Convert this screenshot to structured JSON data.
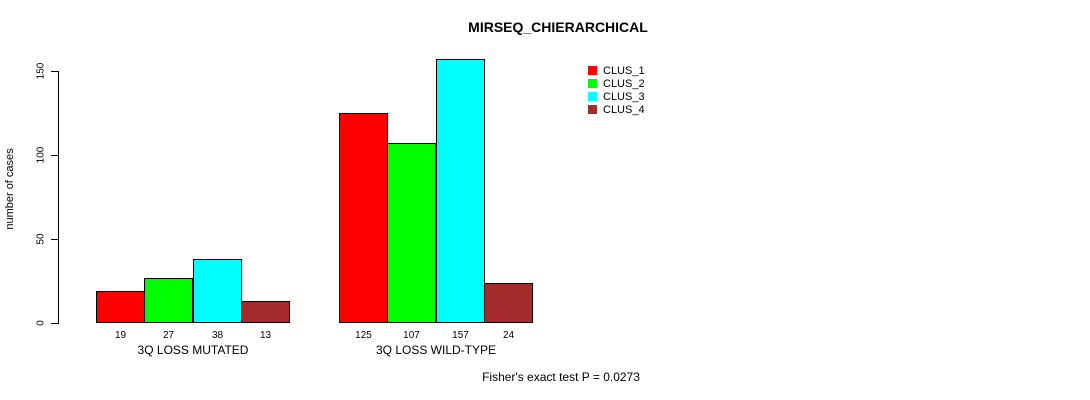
{
  "chart_data": {
    "type": "bar",
    "title": "MIRSEQ_CHIERARCHICAL",
    "ylabel": "number of cases",
    "xlabel": "",
    "ylim": [
      0,
      150
    ],
    "yticks": [
      0,
      50,
      100,
      150
    ],
    "grid": false,
    "legend_position": "top-right",
    "categories": [
      "3Q LOSS MUTATED",
      "3Q LOSS WILD-TYPE"
    ],
    "series": [
      {
        "name": "CLUS_1",
        "color": "#FF0000",
        "values": [
          19,
          125
        ]
      },
      {
        "name": "CLUS_2",
        "color": "#00FF00",
        "values": [
          27,
          107
        ]
      },
      {
        "name": "CLUS_3",
        "color": "#00FFFF",
        "values": [
          38,
          157
        ]
      },
      {
        "name": "CLUS_4",
        "color": "#A52A2A",
        "values": [
          13,
          24
        ]
      }
    ],
    "annotation": "Fisher's exact test P = 0.0273"
  }
}
